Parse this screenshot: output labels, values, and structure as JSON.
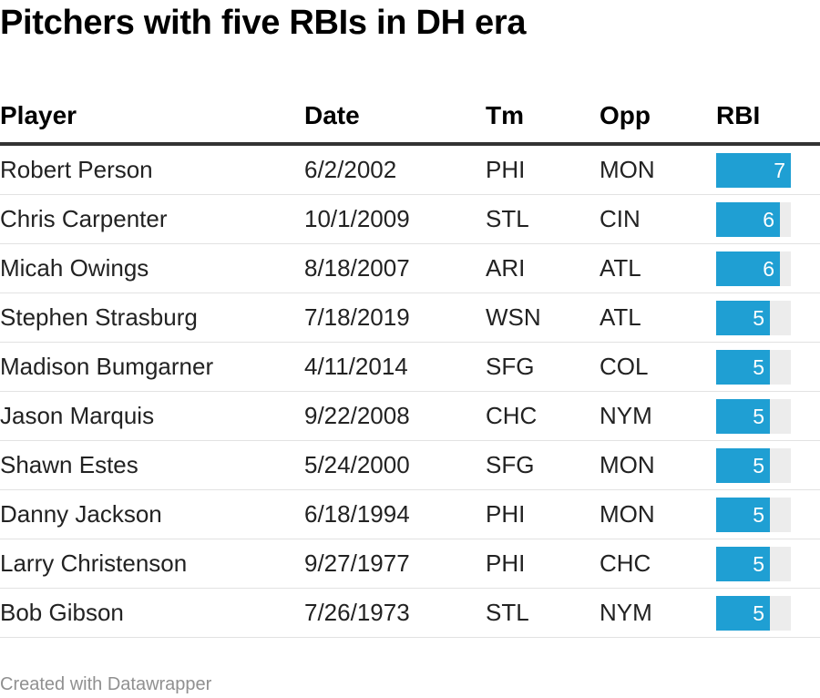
{
  "chart_data": {
    "type": "table",
    "title": "Pitchers with five RBIs in DH era",
    "columns": [
      "Player",
      "Date",
      "Tm",
      "Opp",
      "RBI"
    ],
    "rows": [
      {
        "player": "Robert Person",
        "date": "6/2/2002",
        "tm": "PHI",
        "opp": "MON",
        "rbi": 7
      },
      {
        "player": "Chris Carpenter",
        "date": "10/1/2009",
        "tm": "STL",
        "opp": "CIN",
        "rbi": 6
      },
      {
        "player": "Micah Owings",
        "date": "8/18/2007",
        "tm": "ARI",
        "opp": "ATL",
        "rbi": 6
      },
      {
        "player": "Stephen Strasburg",
        "date": "7/18/2019",
        "tm": "WSN",
        "opp": "ATL",
        "rbi": 5
      },
      {
        "player": "Madison Bumgarner",
        "date": "4/11/2014",
        "tm": "SFG",
        "opp": "COL",
        "rbi": 5
      },
      {
        "player": "Jason Marquis",
        "date": "9/22/2008",
        "tm": "CHC",
        "opp": "NYM",
        "rbi": 5
      },
      {
        "player": "Shawn Estes",
        "date": "5/24/2000",
        "tm": "SFG",
        "opp": "MON",
        "rbi": 5
      },
      {
        "player": "Danny Jackson",
        "date": "6/18/1994",
        "tm": "PHI",
        "opp": "MON",
        "rbi": 5
      },
      {
        "player": "Larry Christenson",
        "date": "9/27/1977",
        "tm": "PHI",
        "opp": "CHC",
        "rbi": 5
      },
      {
        "player": "Bob Gibson",
        "date": "7/26/1973",
        "tm": "STL",
        "opp": "NYM",
        "rbi": 5
      }
    ],
    "rbi_bar_max": 7,
    "bar_color": "#1f9fd3",
    "bar_track_color": "#ececec"
  },
  "footer": "Created with Datawrapper"
}
